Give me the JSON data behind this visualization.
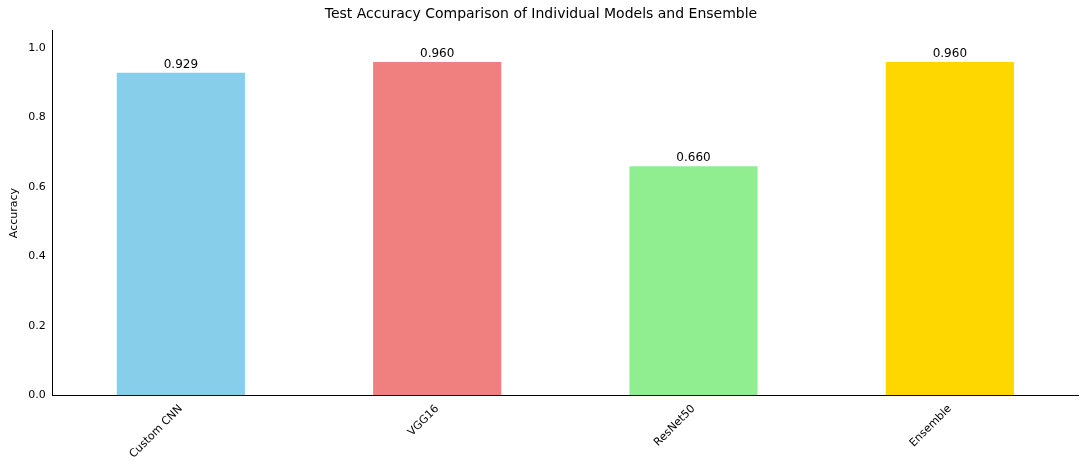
{
  "chart_data": {
    "type": "bar",
    "title": "Test Accuracy Comparison of Individual Models and Ensemble",
    "ylabel": "Accuracy",
    "categories": [
      "Custom CNN",
      "VGG16",
      "ResNet50",
      "Ensemble"
    ],
    "values": [
      0.929,
      0.96,
      0.66,
      0.96
    ],
    "value_labels": [
      "0.929",
      "0.960",
      "0.660",
      "0.960"
    ],
    "colors": [
      "#87ceeb",
      "#f08080",
      "#90ee90",
      "#ffd700"
    ],
    "ylim": [
      0,
      1.05
    ],
    "yticks": [
      {
        "value": 0,
        "label": "0.0"
      },
      0.2,
      0.4,
      0.6,
      0.8,
      {
        "value": 1,
        "label": "1.0"
      }
    ],
    "grid": false,
    "legend": false
  }
}
